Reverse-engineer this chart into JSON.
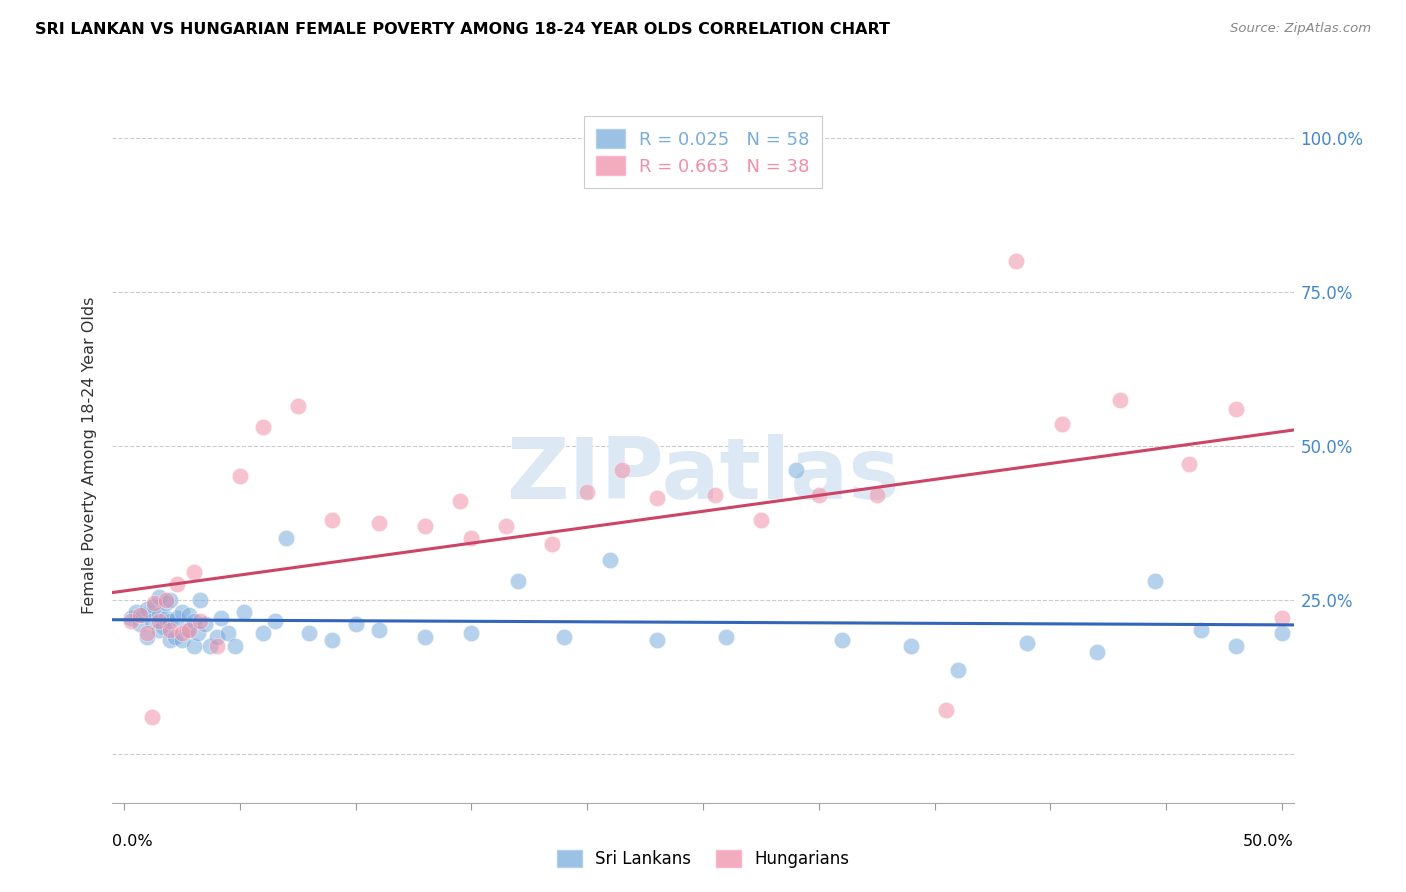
{
  "title": "SRI LANKAN VS HUNGARIAN FEMALE POVERTY AMONG 18-24 YEAR OLDS CORRELATION CHART",
  "source": "Source: ZipAtlas.com",
  "ylabel": "Female Poverty Among 18-24 Year Olds",
  "xlim": [
    -0.005,
    0.505
  ],
  "ylim": [
    -0.08,
    1.05
  ],
  "yticks": [
    0.0,
    0.25,
    0.5,
    0.75,
    1.0
  ],
  "ytick_labels": [
    "",
    "25.0%",
    "50.0%",
    "75.0%",
    "100.0%"
  ],
  "xtick_positions": [
    0.0,
    0.05,
    0.1,
    0.15,
    0.2,
    0.25,
    0.3,
    0.35,
    0.4,
    0.45,
    0.5
  ],
  "blue_color": "#7aacdc",
  "pink_color": "#f090a8",
  "blue_legend": "Sri Lankans",
  "pink_legend": "Hungarians",
  "blue_R": 0.025,
  "blue_N": 58,
  "pink_R": 0.663,
  "pink_N": 38,
  "watermark_color": "#dde8f5",
  "background_color": "#ffffff",
  "grid_color": "#cccccc",
  "blue_line_color": "#3366bb",
  "pink_line_color": "#cc4466",
  "blue_scatter_x": [
    0.003,
    0.005,
    0.007,
    0.008,
    0.01,
    0.01,
    0.012,
    0.013,
    0.015,
    0.015,
    0.015,
    0.017,
    0.018,
    0.018,
    0.02,
    0.02,
    0.02,
    0.022,
    0.023,
    0.025,
    0.025,
    0.027,
    0.028,
    0.03,
    0.03,
    0.032,
    0.033,
    0.035,
    0.037,
    0.04,
    0.042,
    0.045,
    0.048,
    0.052,
    0.06,
    0.065,
    0.07,
    0.08,
    0.09,
    0.1,
    0.11,
    0.13,
    0.15,
    0.17,
    0.19,
    0.21,
    0.23,
    0.26,
    0.29,
    0.31,
    0.34,
    0.36,
    0.39,
    0.42,
    0.445,
    0.465,
    0.48,
    0.5
  ],
  "blue_scatter_y": [
    0.22,
    0.23,
    0.21,
    0.225,
    0.19,
    0.235,
    0.215,
    0.24,
    0.2,
    0.225,
    0.255,
    0.205,
    0.22,
    0.245,
    0.185,
    0.215,
    0.25,
    0.19,
    0.22,
    0.185,
    0.23,
    0.2,
    0.225,
    0.175,
    0.215,
    0.195,
    0.25,
    0.21,
    0.175,
    0.19,
    0.22,
    0.195,
    0.175,
    0.23,
    0.195,
    0.215,
    0.35,
    0.195,
    0.185,
    0.21,
    0.2,
    0.19,
    0.195,
    0.28,
    0.19,
    0.315,
    0.185,
    0.19,
    0.46,
    0.185,
    0.175,
    0.135,
    0.18,
    0.165,
    0.28,
    0.2,
    0.175,
    0.195
  ],
  "pink_scatter_x": [
    0.003,
    0.007,
    0.01,
    0.013,
    0.015,
    0.018,
    0.02,
    0.023,
    0.025,
    0.028,
    0.03,
    0.033,
    0.04,
    0.05,
    0.06,
    0.075,
    0.09,
    0.11,
    0.13,
    0.15,
    0.165,
    0.185,
    0.2,
    0.215,
    0.23,
    0.255,
    0.275,
    0.3,
    0.325,
    0.355,
    0.385,
    0.405,
    0.43,
    0.46,
    0.48,
    0.5,
    0.012,
    0.145
  ],
  "pink_scatter_y": [
    0.215,
    0.225,
    0.195,
    0.245,
    0.215,
    0.25,
    0.2,
    0.275,
    0.195,
    0.2,
    0.295,
    0.215,
    0.175,
    0.45,
    0.53,
    0.565,
    0.38,
    0.375,
    0.37,
    0.35,
    0.37,
    0.34,
    0.425,
    0.46,
    0.415,
    0.42,
    0.38,
    0.42,
    0.42,
    0.07,
    0.8,
    0.535,
    0.575,
    0.47,
    0.56,
    0.22,
    0.06,
    0.41
  ]
}
